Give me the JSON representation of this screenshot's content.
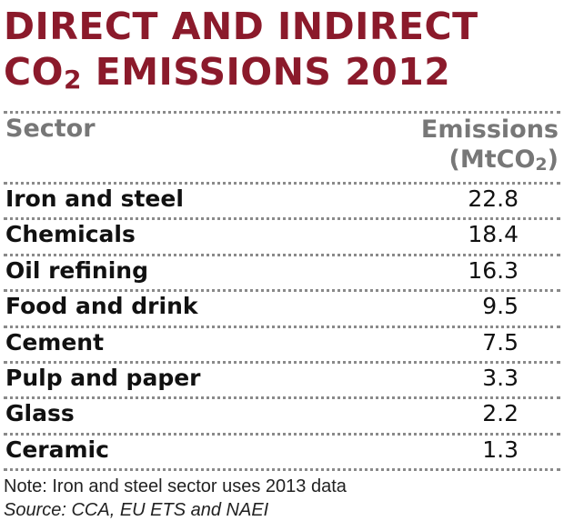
{
  "title": {
    "line1": "DIRECT AND INDIRECT",
    "line2_pre": "CO",
    "line2_sub": "2",
    "line2_post": " EMISSIONS 2012"
  },
  "header": {
    "sector": "Sector",
    "emissions": "Emissions",
    "unit_pre": "(MtCO",
    "unit_sub": "2",
    "unit_post": ")"
  },
  "chart_data": {
    "type": "table",
    "title": "DIRECT AND INDIRECT CO2 EMISSIONS 2012",
    "columns": [
      "Sector",
      "Emissions (MtCO2)"
    ],
    "rows": [
      {
        "sector": "Iron and steel",
        "value": "22.8"
      },
      {
        "sector": "Chemicals",
        "value": "18.4"
      },
      {
        "sector": "Oil refining",
        "value": "16.3"
      },
      {
        "sector": "Food and drink",
        "value": "9.5"
      },
      {
        "sector": "Cement",
        "value": "7.5"
      },
      {
        "sector": "Pulp and paper",
        "value": "3.3"
      },
      {
        "sector": "Glass",
        "value": "2.2"
      },
      {
        "sector": "Ceramic",
        "value": "1.3"
      }
    ]
  },
  "footer": {
    "note": "Note: Iron and steel sector uses 2013 data",
    "source": "Source: CCA, EU ETS and NAEI"
  },
  "colors": {
    "title": "#8b1a2b",
    "header": "#777777",
    "dots": "#8a8a8a"
  }
}
